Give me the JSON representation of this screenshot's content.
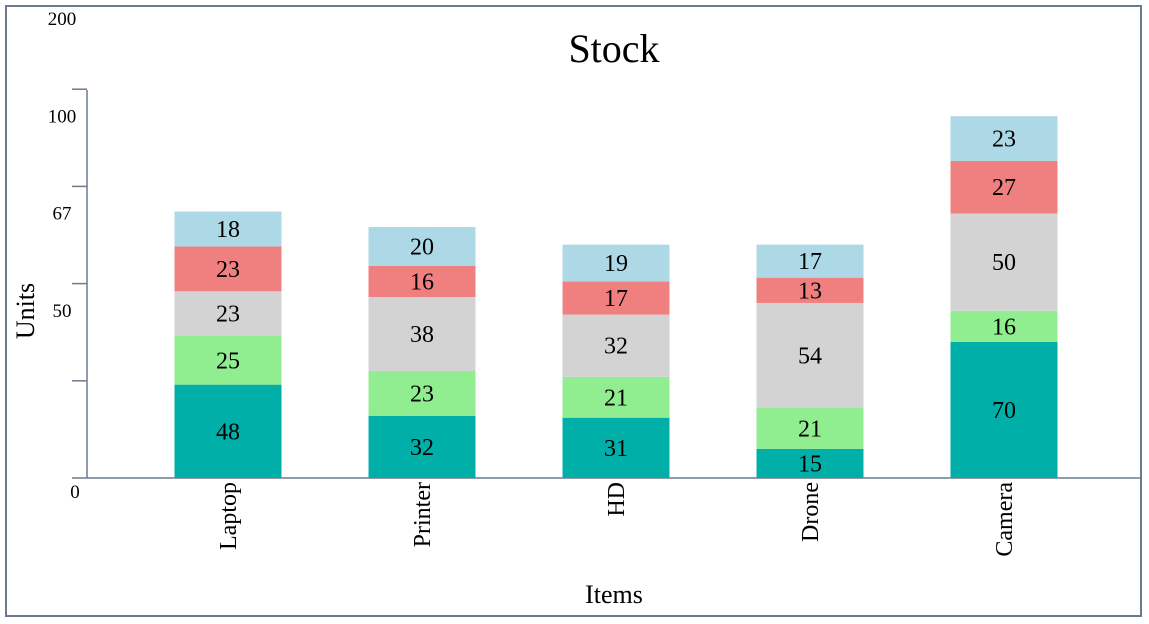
{
  "chart_data": {
    "type": "bar",
    "stacked": true,
    "title": "Stock",
    "xlabel": "Items",
    "ylabel": "Units",
    "categories": [
      "Laptop",
      "Printer",
      "HD",
      "Drone",
      "Camera"
    ],
    "y_ticks": [
      "0",
      "50",
      "67",
      "100",
      "200"
    ],
    "series": [
      {
        "color": "#00b0a8",
        "values": [
          48,
          32,
          31,
          15,
          70
        ]
      },
      {
        "color": "#90ee90",
        "values": [
          25,
          23,
          21,
          21,
          16
        ]
      },
      {
        "color": "#d3d3d3",
        "values": [
          23,
          38,
          32,
          54,
          50
        ]
      },
      {
        "color": "#f08080",
        "values": [
          23,
          16,
          17,
          13,
          27
        ]
      },
      {
        "color": "#add8e6",
        "values": [
          18,
          20,
          19,
          17,
          23
        ]
      }
    ],
    "grid": false,
    "legend": "none"
  }
}
